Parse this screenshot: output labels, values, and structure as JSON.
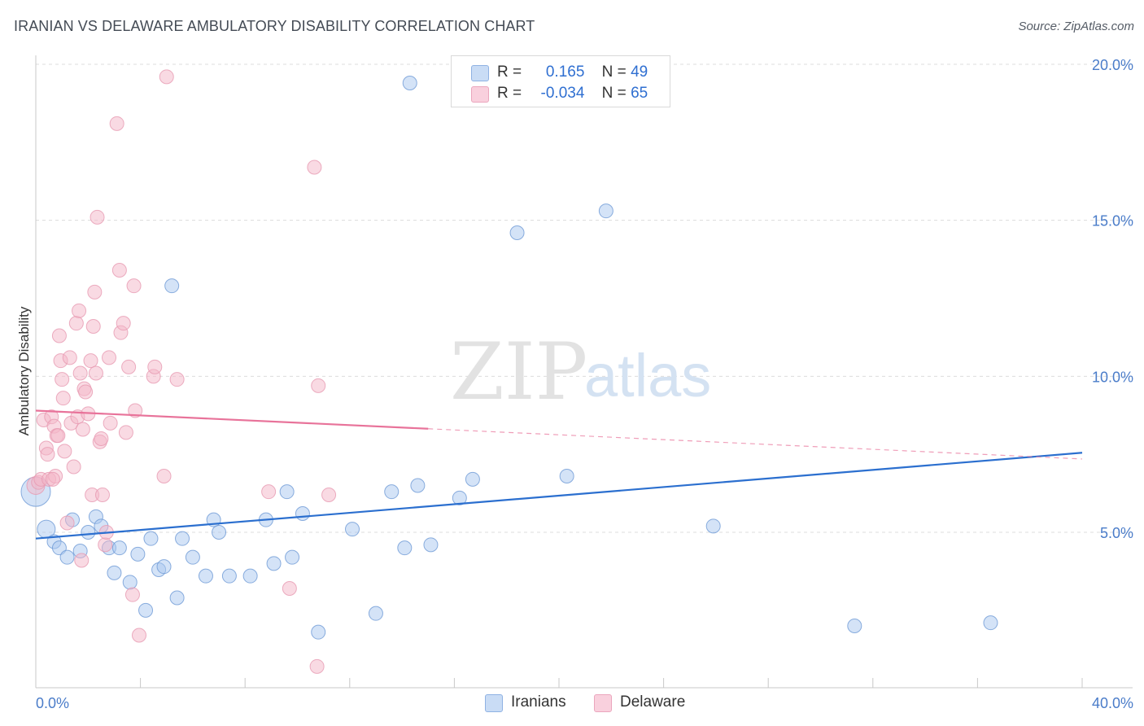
{
  "title": "IRANIAN VS DELAWARE AMBULATORY DISABILITY CORRELATION CHART",
  "source": "Source: ZipAtlas.com",
  "watermark": {
    "zip": "ZIP",
    "atlas": "atlas"
  },
  "legend": {
    "rows": [
      {
        "r_label": "R =",
        "r_value": "0.165",
        "n_label": "N =",
        "n_value": "49",
        "color": "#a9c8f0"
      },
      {
        "r_label": "R =",
        "r_value": "-0.034",
        "n_label": "N =",
        "n_value": "65",
        "color": "#f4b6c8"
      }
    ]
  },
  "bottom_legend": [
    {
      "label": "Iranians",
      "color": "#a9c8f0"
    },
    {
      "label": "Delaware",
      "color": "#f4b6c8"
    }
  ],
  "chart_data": {
    "type": "scatter",
    "title": "",
    "xlabel": "",
    "ylabel": "Ambulatory Disability",
    "xlim": [
      0,
      40
    ],
    "ylim": [
      0,
      20.5
    ],
    "x_tick_labels": [
      "0.0%",
      "40.0%"
    ],
    "y_ticks": [
      5,
      10,
      15,
      20
    ],
    "y_tick_labels": [
      "5.0%",
      "10.0%",
      "15.0%",
      "20.0%"
    ],
    "grid": true,
    "series": [
      {
        "name": "Iranians",
        "color": "#a9c8f0",
        "stroke": "#6e9ad6",
        "trend_color": "#2b6fcf",
        "trend": {
          "x0": 0,
          "y0": 4.8,
          "x1": 40,
          "y1": 7.55,
          "solid_to": 40
        },
        "points": [
          [
            0.0,
            6.3
          ],
          [
            0.4,
            5.1
          ],
          [
            0.7,
            4.7
          ],
          [
            0.9,
            4.5
          ],
          [
            1.2,
            4.2
          ],
          [
            1.4,
            5.4
          ],
          [
            1.7,
            4.4
          ],
          [
            2.0,
            5.0
          ],
          [
            2.3,
            5.5
          ],
          [
            2.5,
            5.2
          ],
          [
            2.8,
            4.5
          ],
          [
            3.0,
            3.7
          ],
          [
            3.2,
            4.5
          ],
          [
            3.6,
            3.4
          ],
          [
            3.9,
            4.3
          ],
          [
            4.2,
            2.5
          ],
          [
            4.4,
            4.8
          ],
          [
            4.7,
            3.8
          ],
          [
            4.9,
            3.9
          ],
          [
            5.2,
            12.9
          ],
          [
            5.4,
            2.9
          ],
          [
            5.6,
            4.8
          ],
          [
            6.0,
            4.2
          ],
          [
            6.5,
            3.6
          ],
          [
            6.8,
            5.4
          ],
          [
            7.0,
            5.0
          ],
          [
            7.4,
            3.6
          ],
          [
            8.2,
            3.6
          ],
          [
            8.8,
            5.4
          ],
          [
            9.1,
            4.0
          ],
          [
            9.6,
            6.3
          ],
          [
            9.8,
            4.2
          ],
          [
            10.2,
            5.6
          ],
          [
            10.8,
            1.8
          ],
          [
            12.1,
            5.1
          ],
          [
            13.0,
            2.4
          ],
          [
            13.6,
            6.3
          ],
          [
            14.1,
            4.5
          ],
          [
            14.3,
            19.4
          ],
          [
            14.6,
            6.5
          ],
          [
            15.1,
            4.6
          ],
          [
            16.2,
            6.1
          ],
          [
            16.7,
            6.7
          ],
          [
            18.4,
            14.6
          ],
          [
            20.3,
            6.8
          ],
          [
            21.8,
            15.3
          ],
          [
            25.9,
            5.2
          ],
          [
            31.3,
            2.0
          ],
          [
            36.5,
            2.1
          ]
        ]
      },
      {
        "name": "Delaware",
        "color": "#f4b6c8",
        "stroke": "#e79ab2",
        "trend_color": "#e8739a",
        "trend": {
          "x0": 0,
          "y0": 8.9,
          "x1": 40,
          "y1": 7.35,
          "solid_to": 15
        },
        "points": [
          [
            0.0,
            6.5
          ],
          [
            0.1,
            6.6
          ],
          [
            0.2,
            6.7
          ],
          [
            0.3,
            8.6
          ],
          [
            0.4,
            7.7
          ],
          [
            0.45,
            7.5
          ],
          [
            0.5,
            6.7
          ],
          [
            0.6,
            8.7
          ],
          [
            0.7,
            8.4
          ],
          [
            0.75,
            6.8
          ],
          [
            0.8,
            8.1
          ],
          [
            0.85,
            8.1
          ],
          [
            0.9,
            11.3
          ],
          [
            0.95,
            10.5
          ],
          [
            1.0,
            9.9
          ],
          [
            1.05,
            9.3
          ],
          [
            1.1,
            7.6
          ],
          [
            1.2,
            5.3
          ],
          [
            1.3,
            10.6
          ],
          [
            1.35,
            8.5
          ],
          [
            1.45,
            7.1
          ],
          [
            1.55,
            11.7
          ],
          [
            1.6,
            8.7
          ],
          [
            1.65,
            12.1
          ],
          [
            1.7,
            10.1
          ],
          [
            1.75,
            4.1
          ],
          [
            1.8,
            8.3
          ],
          [
            1.85,
            9.6
          ],
          [
            1.9,
            9.5
          ],
          [
            2.0,
            8.8
          ],
          [
            2.1,
            10.5
          ],
          [
            2.15,
            6.2
          ],
          [
            2.2,
            11.6
          ],
          [
            2.25,
            12.7
          ],
          [
            2.3,
            10.1
          ],
          [
            2.35,
            15.1
          ],
          [
            2.45,
            7.9
          ],
          [
            2.5,
            8.0
          ],
          [
            2.55,
            6.2
          ],
          [
            2.65,
            4.6
          ],
          [
            2.7,
            5.0
          ],
          [
            2.8,
            10.6
          ],
          [
            2.85,
            8.5
          ],
          [
            3.1,
            18.1
          ],
          [
            3.2,
            13.4
          ],
          [
            3.25,
            11.4
          ],
          [
            3.35,
            11.7
          ],
          [
            3.45,
            8.2
          ],
          [
            3.55,
            10.3
          ],
          [
            3.75,
            12.9
          ],
          [
            3.8,
            8.9
          ],
          [
            3.95,
            1.7
          ],
          [
            4.5,
            10.0
          ],
          [
            4.55,
            10.3
          ],
          [
            4.9,
            6.8
          ],
          [
            5.0,
            19.6
          ],
          [
            5.4,
            9.9
          ],
          [
            8.9,
            6.3
          ],
          [
            9.7,
            3.2
          ],
          [
            10.65,
            16.7
          ],
          [
            10.8,
            9.7
          ],
          [
            11.2,
            6.2
          ],
          [
            10.75,
            0.7
          ],
          [
            3.7,
            3.0
          ],
          [
            0.65,
            6.7
          ]
        ]
      }
    ]
  }
}
